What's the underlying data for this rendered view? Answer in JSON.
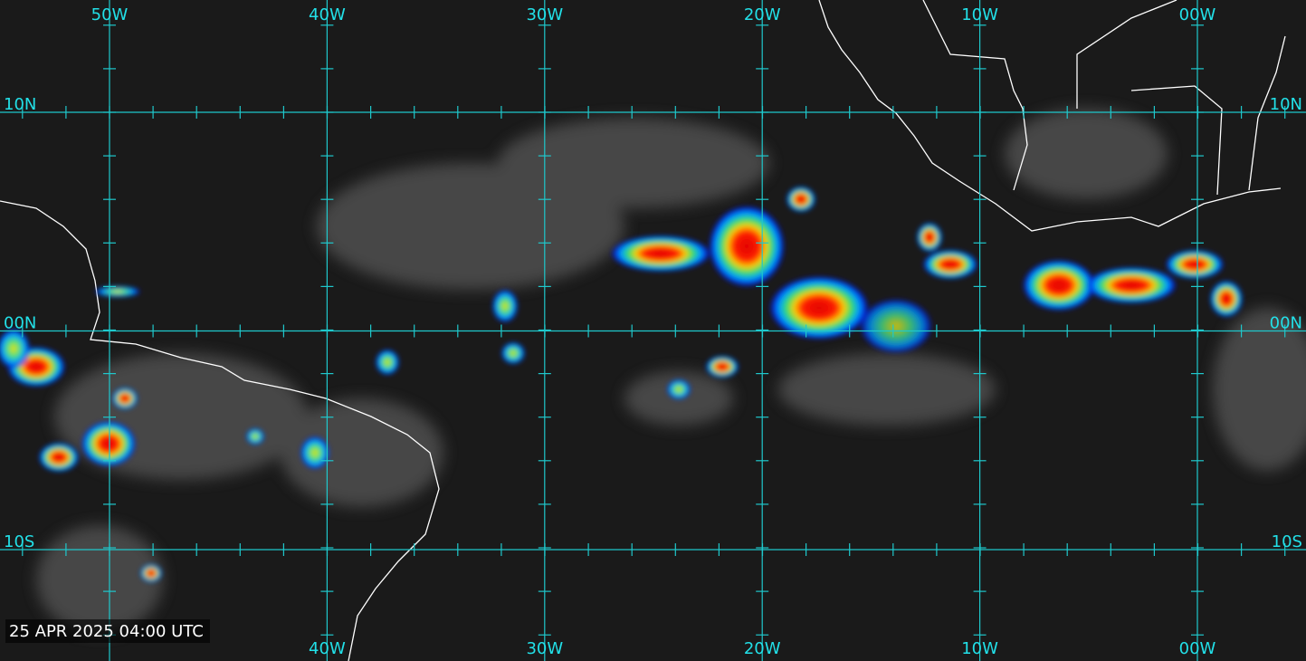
{
  "grid": {
    "longitude_labels": [
      "50W",
      "40W",
      "30W",
      "20W",
      "10W",
      "00W"
    ],
    "latitude_labels": [
      "10N",
      "00N",
      "10S"
    ]
  },
  "timestamp": "25 APR 2025 04:00 UTC"
}
